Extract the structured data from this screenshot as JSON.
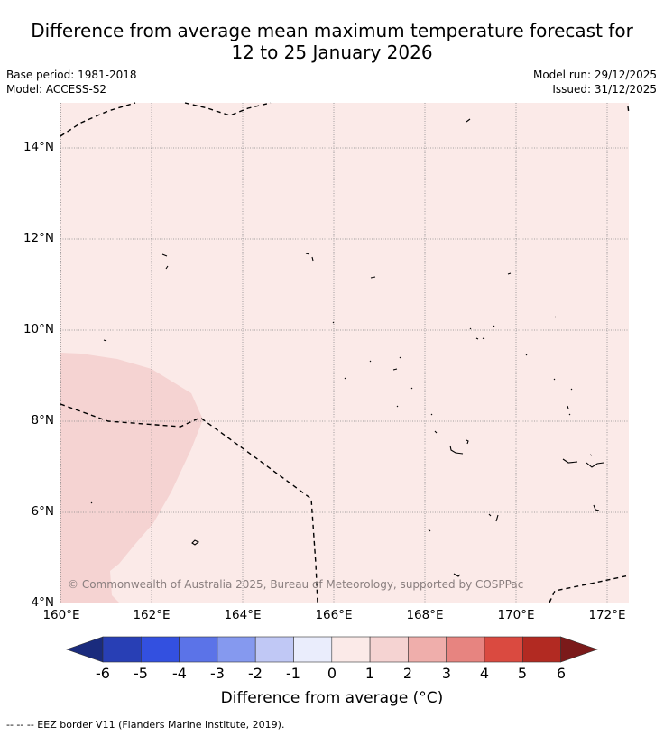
{
  "map": {
    "title_line1": "Difference from average mean maximum temperature forecast for",
    "title_line2": "12 to 25 January 2026",
    "base_period": "Base period: 1981-2018",
    "model": "Model: ACCESS-S2",
    "model_run": "Model run: 29/12/2025",
    "issued": "Issued: 31/12/2025",
    "credit": "© Commonwealth of Australia 2025, Bureau of Meteorology, supported by COSPPac",
    "footer": "--  --  -- EEZ border V11 (Flanders Marine Institute, 2019).",
    "latitude_labels": [
      "14°N",
      "12°N",
      "10°N",
      "8°N",
      "6°N",
      "4°N"
    ],
    "longitude_labels": [
      "160°E",
      "162°E",
      "164°E",
      "166°E",
      "168°E",
      "170°E",
      "172°E"
    ],
    "colours": {
      "anomaly_0_to_1": "#fbeae8",
      "anomaly_1_to_2": "#f5d3d2",
      "gridline": "#888888",
      "eez_border": "#000000"
    }
  },
  "colorbar": {
    "title": "Difference from average (°C)",
    "labels": [
      "-6",
      "-5",
      "-4",
      "-3",
      "-2",
      "-1",
      "0",
      "1",
      "2",
      "3",
      "4",
      "5",
      "6"
    ],
    "colors": [
      "#1a2b7d",
      "#283fb5",
      "#3350e0",
      "#5b73e8",
      "#8599ef",
      "#c0c8f5",
      "#eaedfc",
      "#fbeae8",
      "#f5d3d2",
      "#efaeab",
      "#e78480",
      "#da4a40",
      "#b22a22",
      "#7b1a1a"
    ]
  }
}
